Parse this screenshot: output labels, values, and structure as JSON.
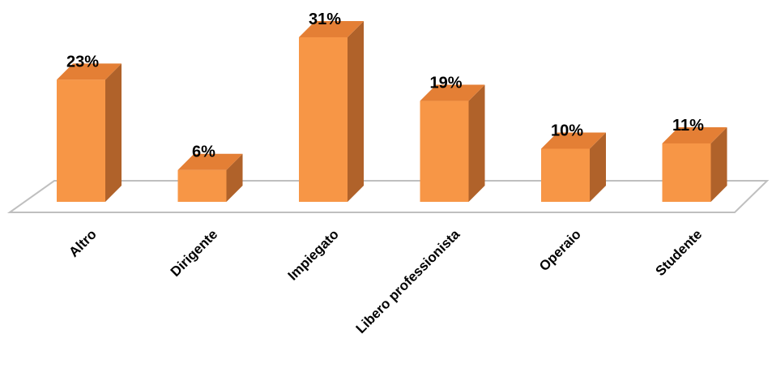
{
  "chart_data": {
    "type": "bar",
    "style": "3d-column",
    "categories": [
      "Altro",
      "Dirigente",
      "Impiegato",
      "Libero professionista",
      "Operaio",
      "Studente"
    ],
    "values": [
      23,
      6,
      31,
      19,
      10,
      11
    ],
    "value_labels": [
      "23%",
      "6%",
      "31%",
      "19%",
      "10%",
      "11%"
    ],
    "unit": "%",
    "title": "",
    "xlabel": "",
    "ylabel": "",
    "ylim": [
      0,
      35
    ],
    "grid": false,
    "legend": "none",
    "colors": {
      "front": "#F79646",
      "side": "#B0622A",
      "top": "#E47F35",
      "floor_stroke": "#BFBFBF"
    }
  }
}
